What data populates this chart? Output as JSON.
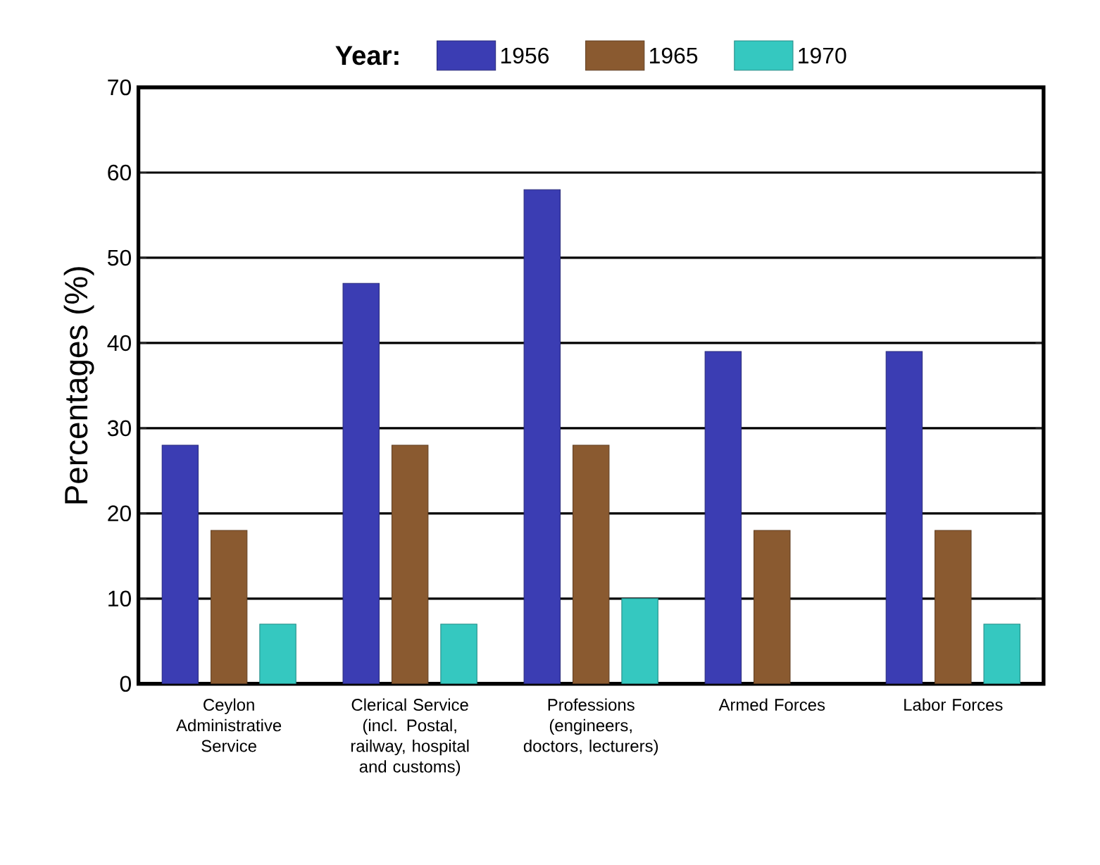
{
  "chart_data": {
    "type": "bar",
    "ylabel": "Percentages (%)",
    "legend_title": "Year:",
    "categories": [
      "Ceylon Administrative Service",
      "Clerical Service (incl. Postal, railway, hospital and customs)",
      "Professions (engineers, doctors, lecturers)",
      "Armed Forces",
      "Labor Forces"
    ],
    "series": [
      {
        "name": "1956",
        "color": "#3b3db3",
        "values": [
          28,
          47,
          58,
          39,
          39
        ]
      },
      {
        "name": "1965",
        "color": "#8a5a30",
        "values": [
          18,
          28,
          28,
          18,
          18
        ]
      },
      {
        "name": "1970",
        "color": "#35c8c0",
        "values": [
          7,
          7,
          10,
          null,
          7
        ]
      }
    ],
    "ylim": [
      0,
      70
    ],
    "yticks": [
      0,
      10,
      20,
      30,
      40,
      50,
      60,
      70
    ],
    "grid": "y",
    "legend": "top"
  }
}
